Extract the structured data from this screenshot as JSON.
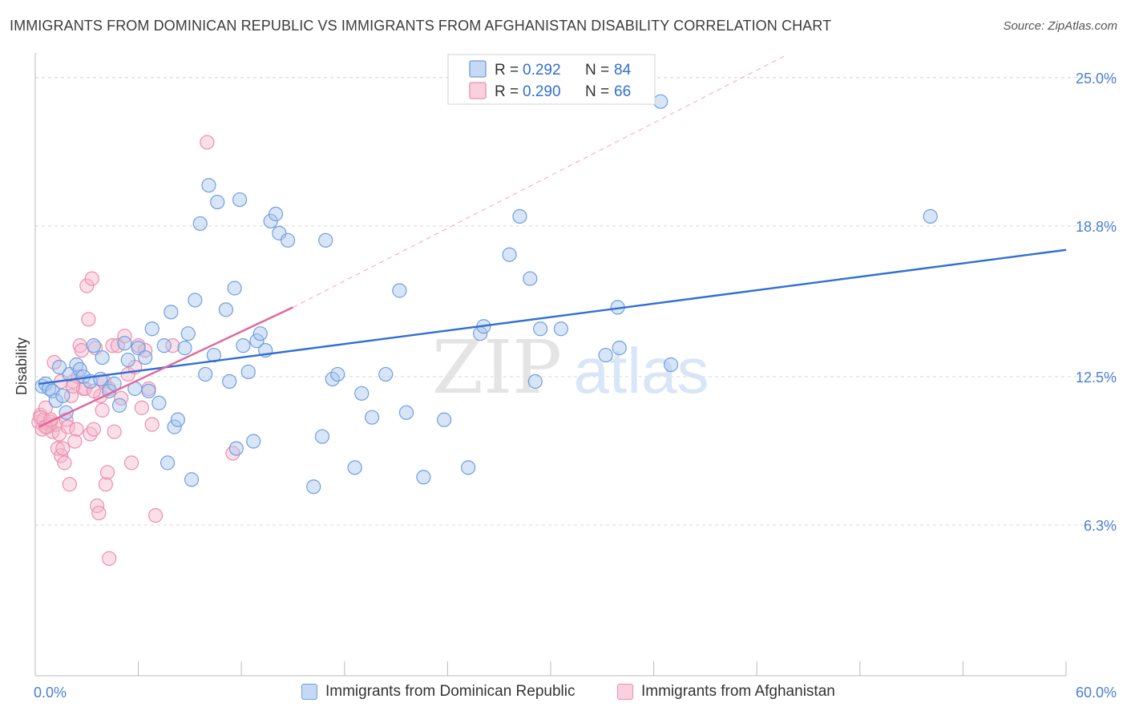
{
  "title": "IMMIGRANTS FROM DOMINICAN REPUBLIC VS IMMIGRANTS FROM AFGHANISTAN DISABILITY CORRELATION CHART",
  "source": "Source: ZipAtlas.com",
  "watermark": {
    "zip": "ZIP",
    "atlas": "atlas"
  },
  "colors": {
    "blue_fill": "#a9c6ee",
    "blue_stroke": "#6f9fe0",
    "blue_line": "#2f6fd6",
    "pink_fill": "#f6b8cc",
    "pink_stroke": "#ec8fad",
    "pink_line": "#e0669a",
    "grid": "#d8d8d8",
    "tick_text": "#4a7fd4"
  },
  "legend": {
    "rows": [
      {
        "r_label": "R =",
        "r_value": "0.292",
        "n_label": "N =",
        "n_value": "84",
        "series": "blue"
      },
      {
        "r_label": "R =",
        "r_value": "0.290",
        "n_label": "N =",
        "n_value": "66",
        "series": "pink"
      }
    ]
  },
  "chart_data": {
    "type": "scatter",
    "xlabel": "",
    "ylabel": "Disability",
    "xlim": [
      0,
      60
    ],
    "ylim": [
      0,
      25.9
    ],
    "x_tick_labels": [
      "0.0%",
      "60.0%"
    ],
    "y_ticks": [
      6.3,
      12.5,
      18.8,
      25.0
    ],
    "y_tick_labels": [
      "6.3%",
      "12.5%",
      "18.8%",
      "25.0%"
    ],
    "series": [
      {
        "name": "Immigrants from Dominican Republic",
        "color": "blue",
        "trend": {
          "x0": 0.2,
          "y0": 12.2,
          "x1": 60,
          "y1": 17.8
        },
        "points": [
          [
            0.4,
            12.1
          ],
          [
            0.6,
            12.2
          ],
          [
            0.8,
            12.0
          ],
          [
            1.0,
            11.9
          ],
          [
            1.2,
            11.5
          ],
          [
            1.4,
            12.9
          ],
          [
            1.6,
            11.7
          ],
          [
            1.8,
            11.0
          ],
          [
            2.0,
            12.6
          ],
          [
            2.4,
            13.0
          ],
          [
            2.6,
            12.8
          ],
          [
            2.8,
            12.5
          ],
          [
            3.2,
            12.3
          ],
          [
            3.4,
            13.8
          ],
          [
            3.8,
            12.4
          ],
          [
            3.9,
            13.3
          ],
          [
            4.3,
            11.9
          ],
          [
            4.6,
            12.2
          ],
          [
            4.9,
            11.3
          ],
          [
            5.2,
            13.9
          ],
          [
            5.4,
            13.2
          ],
          [
            5.8,
            12.0
          ],
          [
            6.0,
            13.7
          ],
          [
            6.4,
            13.3
          ],
          [
            6.6,
            11.9
          ],
          [
            6.8,
            14.5
          ],
          [
            7.2,
            11.4
          ],
          [
            7.5,
            13.8
          ],
          [
            7.7,
            8.9
          ],
          [
            7.9,
            15.2
          ],
          [
            8.1,
            10.4
          ],
          [
            8.3,
            10.7
          ],
          [
            8.7,
            13.7
          ],
          [
            8.9,
            14.3
          ],
          [
            9.1,
            8.2
          ],
          [
            9.3,
            15.7
          ],
          [
            9.6,
            18.9
          ],
          [
            9.9,
            12.6
          ],
          [
            10.1,
            20.5
          ],
          [
            10.4,
            13.4
          ],
          [
            10.6,
            19.8
          ],
          [
            11.1,
            15.3
          ],
          [
            11.3,
            12.3
          ],
          [
            11.6,
            16.2
          ],
          [
            11.7,
            9.5
          ],
          [
            11.9,
            19.9
          ],
          [
            12.1,
            13.8
          ],
          [
            12.4,
            12.7
          ],
          [
            12.7,
            9.8
          ],
          [
            12.9,
            14.0
          ],
          [
            13.1,
            14.3
          ],
          [
            13.4,
            13.6
          ],
          [
            13.7,
            19.0
          ],
          [
            14.0,
            19.3
          ],
          [
            14.2,
            18.5
          ],
          [
            14.7,
            18.2
          ],
          [
            16.2,
            7.9
          ],
          [
            16.7,
            10.0
          ],
          [
            16.9,
            18.2
          ],
          [
            17.3,
            12.4
          ],
          [
            17.6,
            12.6
          ],
          [
            18.6,
            8.7
          ],
          [
            19.0,
            11.8
          ],
          [
            19.6,
            10.8
          ],
          [
            20.4,
            12.6
          ],
          [
            21.2,
            16.1
          ],
          [
            21.6,
            11.0
          ],
          [
            22.6,
            8.3
          ],
          [
            23.8,
            10.7
          ],
          [
            25.2,
            8.7
          ],
          [
            25.9,
            14.3
          ],
          [
            26.1,
            14.6
          ],
          [
            27.6,
            17.6
          ],
          [
            28.2,
            19.2
          ],
          [
            28.8,
            16.6
          ],
          [
            29.1,
            12.3
          ],
          [
            29.4,
            14.5
          ],
          [
            30.6,
            14.5
          ],
          [
            33.2,
            13.4
          ],
          [
            33.9,
            15.4
          ],
          [
            34.0,
            13.7
          ],
          [
            36.4,
            24.0
          ],
          [
            37.0,
            13.0
          ],
          [
            52.1,
            19.2
          ]
        ]
      },
      {
        "name": "Immigrants from Afghanistan",
        "color": "pink",
        "trend": {
          "x0": 0.2,
          "y0": 10.4,
          "x1": 15.0,
          "y1": 15.4
        },
        "trend_ext": {
          "x0": 15.0,
          "y0": 15.4,
          "x1": 43.6,
          "y1": 25.9
        },
        "points": [
          [
            0.2,
            10.6
          ],
          [
            0.3,
            10.9
          ],
          [
            0.4,
            10.3
          ],
          [
            0.5,
            10.7
          ],
          [
            0.6,
            11.2
          ],
          [
            0.7,
            10.4
          ],
          [
            0.8,
            10.5
          ],
          [
            0.9,
            10.6
          ],
          [
            1.0,
            10.2
          ],
          [
            1.1,
            13.1
          ],
          [
            1.2,
            10.5
          ],
          [
            1.3,
            9.5
          ],
          [
            1.4,
            10.1
          ],
          [
            1.5,
            9.2
          ],
          [
            1.6,
            9.5
          ],
          [
            1.7,
            8.9
          ],
          [
            1.8,
            10.7
          ],
          [
            1.9,
            10.4
          ],
          [
            2.0,
            8.0
          ],
          [
            2.1,
            11.7
          ],
          [
            2.2,
            12.3
          ],
          [
            2.3,
            9.8
          ],
          [
            2.4,
            10.3
          ],
          [
            2.5,
            12.5
          ],
          [
            2.6,
            13.8
          ],
          [
            2.7,
            13.6
          ],
          [
            2.8,
            12.0
          ],
          [
            2.9,
            12.0
          ],
          [
            3.0,
            16.3
          ],
          [
            3.1,
            14.9
          ],
          [
            3.2,
            10.1
          ],
          [
            3.3,
            16.6
          ],
          [
            3.4,
            10.3
          ],
          [
            3.5,
            13.7
          ],
          [
            3.6,
            7.1
          ],
          [
            3.7,
            6.8
          ],
          [
            3.8,
            11.7
          ],
          [
            3.9,
            11.1
          ],
          [
            4.0,
            12.3
          ],
          [
            4.1,
            8.0
          ],
          [
            4.2,
            8.5
          ],
          [
            4.3,
            4.9
          ],
          [
            4.5,
            13.8
          ],
          [
            4.6,
            10.2
          ],
          [
            4.8,
            13.8
          ],
          [
            5.0,
            11.6
          ],
          [
            5.2,
            14.2
          ],
          [
            5.4,
            12.6
          ],
          [
            5.6,
            8.9
          ],
          [
            5.8,
            12.9
          ],
          [
            6.0,
            13.8
          ],
          [
            6.2,
            11.2
          ],
          [
            6.4,
            13.6
          ],
          [
            6.6,
            12.0
          ],
          [
            6.8,
            10.5
          ],
          [
            7.0,
            6.7
          ],
          [
            8.0,
            13.8
          ],
          [
            10.0,
            22.3
          ],
          [
            11.5,
            9.3
          ],
          [
            0.3,
            10.8
          ],
          [
            0.6,
            10.4
          ],
          [
            0.9,
            10.7
          ],
          [
            1.5,
            12.3
          ],
          [
            2.2,
            12.1
          ],
          [
            3.4,
            11.9
          ],
          [
            4.3,
            12.0
          ]
        ]
      }
    ],
    "legend_bottom": [
      "Immigrants from Dominican Republic",
      "Immigrants from Afghanistan"
    ]
  }
}
